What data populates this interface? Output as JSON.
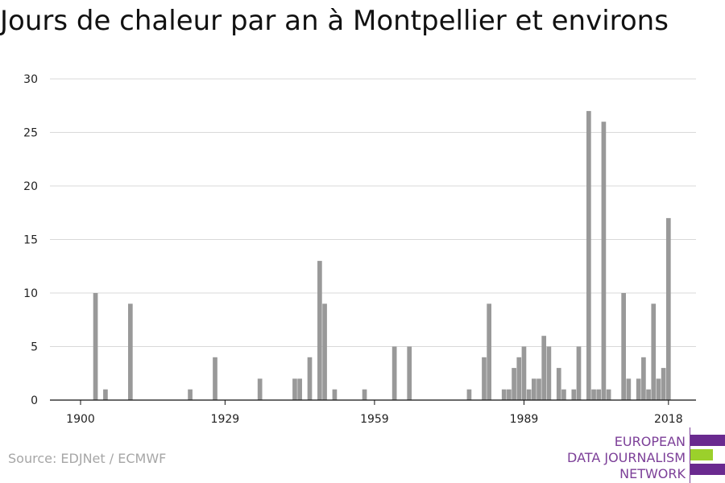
{
  "page": {
    "title": "Jours de chaleur par an à Montpellier et environs",
    "source": "Source: EDJNet / ECMWF",
    "logo": {
      "lines": [
        "EUROPEAN",
        "DATA JOURNALISM",
        "NETWORK"
      ],
      "colors": {
        "purple": "#6a2a8f",
        "green": "#9bd02b"
      }
    }
  },
  "chart_data": {
    "type": "bar",
    "title": "Jours de chaleur par an à Montpellier et environs",
    "xlabel": "",
    "ylabel": "",
    "x_ticks": [
      "1900",
      "1929",
      "1959",
      "1989",
      "2018"
    ],
    "y_ticks": [
      "0",
      "5",
      "10",
      "15",
      "20",
      "25",
      "30"
    ],
    "xlim": [
      1900,
      2019
    ],
    "ylim": [
      0,
      30
    ],
    "grid": true,
    "bar_color": "#999999",
    "categories": [
      1903,
      1905,
      1910,
      1922,
      1927,
      1936,
      1943,
      1944,
      1946,
      1948,
      1949,
      1951,
      1957,
      1963,
      1966,
      1978,
      1981,
      1982,
      1985,
      1986,
      1987,
      1988,
      1989,
      1990,
      1991,
      1992,
      1993,
      1994,
      1996,
      1997,
      1999,
      2000,
      2002,
      2003,
      2004,
      2005,
      2006,
      2009,
      2010,
      2012,
      2013,
      2014,
      2015,
      2016,
      2017,
      2018
    ],
    "values": [
      10,
      1,
      9,
      1,
      4,
      2,
      2,
      2,
      4,
      13,
      9,
      1,
      1,
      5,
      5,
      1,
      4,
      9,
      1,
      1,
      3,
      4,
      5,
      1,
      2,
      2,
      6,
      5,
      3,
      1,
      1,
      5,
      27,
      1,
      1,
      26,
      1,
      10,
      2,
      2,
      4,
      1,
      9,
      2,
      3,
      17
    ]
  }
}
